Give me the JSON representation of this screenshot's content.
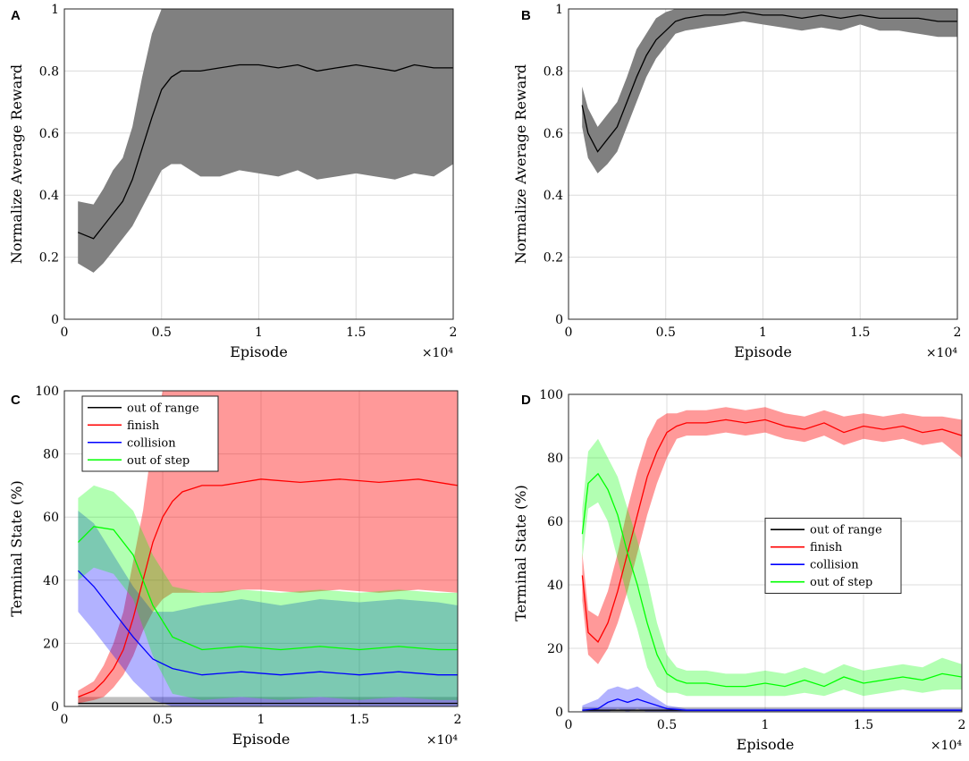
{
  "figure": {
    "exponent_label": "×10⁴"
  },
  "chart_data": [
    {
      "panel": "A",
      "type": "line",
      "title": "",
      "xlabel": "Episode",
      "ylabel": "Normalize Average Reward",
      "xlim": [
        0,
        2
      ],
      "ylim": [
        0,
        1
      ],
      "xticks": [
        "0",
        "0.5",
        "1",
        "1.5",
        "2"
      ],
      "yticks": [
        "0",
        "0.2",
        "0.4",
        "0.6",
        "0.8",
        "1"
      ],
      "x_multiplier": "×10⁴",
      "legend": null,
      "series": [
        {
          "name": "mean",
          "color": "#000000",
          "band_color": "#808080",
          "band_opacity": 1.0,
          "x": [
            0.07,
            0.15,
            0.2,
            0.25,
            0.3,
            0.35,
            0.4,
            0.45,
            0.5,
            0.55,
            0.6,
            0.7,
            0.8,
            0.9,
            1.0,
            1.1,
            1.2,
            1.3,
            1.4,
            1.5,
            1.6,
            1.7,
            1.8,
            1.9,
            2.0
          ],
          "values": [
            0.28,
            0.26,
            0.3,
            0.34,
            0.38,
            0.45,
            0.55,
            0.65,
            0.74,
            0.78,
            0.8,
            0.8,
            0.81,
            0.82,
            0.82,
            0.81,
            0.82,
            0.8,
            0.81,
            0.82,
            0.81,
            0.8,
            0.82,
            0.81,
            0.81
          ],
          "lower": [
            0.18,
            0.15,
            0.18,
            0.22,
            0.26,
            0.3,
            0.36,
            0.42,
            0.48,
            0.5,
            0.5,
            0.46,
            0.46,
            0.48,
            0.47,
            0.46,
            0.48,
            0.45,
            0.46,
            0.47,
            0.46,
            0.45,
            0.47,
            0.46,
            0.5
          ],
          "upper": [
            0.38,
            0.37,
            0.42,
            0.48,
            0.52,
            0.62,
            0.78,
            0.92,
            1.0,
            1.0,
            1.0,
            1.0,
            1.0,
            1.0,
            1.0,
            1.0,
            1.0,
            1.0,
            1.0,
            1.0,
            1.0,
            1.0,
            1.0,
            1.0,
            1.0
          ]
        }
      ]
    },
    {
      "panel": "B",
      "type": "line",
      "title": "",
      "xlabel": "Episode",
      "ylabel": "Normalize Average Reward",
      "xlim": [
        0,
        2
      ],
      "ylim": [
        0,
        1
      ],
      "xticks": [
        "0",
        "0.5",
        "1",
        "1.5",
        "2"
      ],
      "yticks": [
        "0",
        "0.2",
        "0.4",
        "0.6",
        "0.8",
        "1"
      ],
      "x_multiplier": "×10⁴",
      "legend": null,
      "series": [
        {
          "name": "mean",
          "color": "#000000",
          "band_color": "#808080",
          "band_opacity": 1.0,
          "x": [
            0.07,
            0.1,
            0.15,
            0.2,
            0.25,
            0.3,
            0.35,
            0.4,
            0.45,
            0.5,
            0.55,
            0.6,
            0.7,
            0.8,
            0.9,
            1.0,
            1.1,
            1.2,
            1.3,
            1.4,
            1.5,
            1.6,
            1.7,
            1.8,
            1.9,
            2.0
          ],
          "values": [
            0.69,
            0.6,
            0.54,
            0.58,
            0.62,
            0.7,
            0.78,
            0.85,
            0.9,
            0.93,
            0.96,
            0.97,
            0.98,
            0.98,
            0.99,
            0.98,
            0.98,
            0.97,
            0.98,
            0.97,
            0.98,
            0.97,
            0.97,
            0.97,
            0.96,
            0.96
          ],
          "lower": [
            0.62,
            0.52,
            0.47,
            0.5,
            0.54,
            0.62,
            0.7,
            0.78,
            0.84,
            0.88,
            0.92,
            0.93,
            0.94,
            0.95,
            0.96,
            0.95,
            0.94,
            0.93,
            0.94,
            0.93,
            0.95,
            0.93,
            0.93,
            0.92,
            0.91,
            0.91
          ],
          "upper": [
            0.75,
            0.68,
            0.62,
            0.66,
            0.7,
            0.78,
            0.87,
            0.92,
            0.97,
            0.99,
            1.0,
            1.0,
            1.0,
            1.0,
            1.0,
            1.0,
            1.0,
            1.0,
            1.0,
            1.0,
            1.0,
            1.0,
            1.0,
            1.0,
            1.0,
            1.0
          ]
        }
      ]
    },
    {
      "panel": "C",
      "type": "line",
      "title": "",
      "xlabel": "Episode",
      "ylabel": "Terminal State (%)",
      "xlim": [
        0,
        2
      ],
      "ylim": [
        0,
        100
      ],
      "xticks": [
        "0",
        "0.5",
        "1",
        "1.5",
        "2"
      ],
      "yticks": [
        "0",
        "20",
        "40",
        "60",
        "80",
        "100"
      ],
      "x_multiplier": "×10⁴",
      "legend": "top-left",
      "series": [
        {
          "name": "out of range",
          "color": "#000000",
          "band_color": "#000000",
          "band_opacity": 0.25,
          "x": [
            0.07,
            0.5,
            1.0,
            1.5,
            2.0
          ],
          "values": [
            1,
            1,
            1,
            1,
            1
          ],
          "lower": [
            0,
            0,
            0,
            0,
            0
          ],
          "upper": [
            3,
            3,
            3,
            3,
            3
          ]
        },
        {
          "name": "finish",
          "color": "#ff0000",
          "band_color": "#ff0000",
          "band_opacity": 0.4,
          "x": [
            0.07,
            0.15,
            0.2,
            0.25,
            0.3,
            0.35,
            0.4,
            0.45,
            0.5,
            0.55,
            0.6,
            0.7,
            0.8,
            0.9,
            1.0,
            1.2,
            1.4,
            1.6,
            1.8,
            2.0
          ],
          "values": [
            3,
            5,
            8,
            12,
            18,
            28,
            40,
            52,
            60,
            65,
            68,
            70,
            70,
            71,
            72,
            71,
            72,
            71,
            72,
            70
          ],
          "lower": [
            1,
            2,
            3,
            6,
            10,
            16,
            24,
            30,
            34,
            36,
            36,
            36,
            36,
            37,
            37,
            36,
            37,
            36,
            37,
            36
          ],
          "upper": [
            5,
            8,
            13,
            20,
            30,
            46,
            62,
            85,
            100,
            100,
            100,
            100,
            100,
            100,
            100,
            100,
            100,
            100,
            100,
            100
          ]
        },
        {
          "name": "collision",
          "color": "#0000ff",
          "band_color": "#0000ff",
          "band_opacity": 0.3,
          "x": [
            0.07,
            0.15,
            0.25,
            0.35,
            0.45,
            0.55,
            0.7,
            0.9,
            1.1,
            1.3,
            1.5,
            1.7,
            1.9,
            2.0
          ],
          "values": [
            43,
            38,
            30,
            22,
            15,
            12,
            10,
            11,
            10,
            11,
            10,
            11,
            10,
            10
          ],
          "lower": [
            30,
            24,
            16,
            8,
            2,
            0,
            0,
            0,
            0,
            0,
            0,
            0,
            0,
            0
          ],
          "upper": [
            62,
            58,
            48,
            38,
            30,
            30,
            32,
            34,
            32,
            34,
            33,
            34,
            33,
            32
          ]
        },
        {
          "name": "out of step",
          "color": "#00ff00",
          "band_color": "#00ff00",
          "band_opacity": 0.3,
          "x": [
            0.07,
            0.15,
            0.25,
            0.35,
            0.45,
            0.55,
            0.7,
            0.9,
            1.1,
            1.3,
            1.5,
            1.7,
            1.9,
            2.0
          ],
          "values": [
            52,
            57,
            56,
            48,
            32,
            22,
            18,
            19,
            18,
            19,
            18,
            19,
            18,
            18
          ],
          "lower": [
            40,
            44,
            42,
            34,
            16,
            4,
            2,
            3,
            2,
            3,
            2,
            3,
            2,
            2
          ],
          "upper": [
            66,
            70,
            68,
            62,
            48,
            38,
            36,
            37,
            36,
            37,
            36,
            37,
            36,
            36
          ]
        }
      ]
    },
    {
      "panel": "D",
      "type": "line",
      "title": "",
      "xlabel": "Episode",
      "ylabel": "Terminal State (%)",
      "xlim": [
        0,
        2
      ],
      "ylim": [
        0,
        100
      ],
      "xticks": [
        "0",
        "0.5",
        "1",
        "1.5",
        "2"
      ],
      "yticks": [
        "0",
        "20",
        "40",
        "60",
        "80",
        "100"
      ],
      "x_multiplier": "×10⁴",
      "legend": "center-right",
      "series": [
        {
          "name": "out of range",
          "color": "#000000",
          "band_color": "#000000",
          "band_opacity": 0.25,
          "x": [
            0.07,
            0.5,
            1.0,
            1.5,
            2.0
          ],
          "values": [
            0.5,
            0.5,
            0.5,
            0.5,
            0.5
          ],
          "lower": [
            0,
            0,
            0,
            0,
            0
          ],
          "upper": [
            1.5,
            1.5,
            1.5,
            1.5,
            1.5
          ]
        },
        {
          "name": "finish",
          "color": "#ff0000",
          "band_color": "#ff0000",
          "band_opacity": 0.4,
          "x": [
            0.07,
            0.1,
            0.15,
            0.2,
            0.25,
            0.3,
            0.35,
            0.4,
            0.45,
            0.5,
            0.55,
            0.6,
            0.7,
            0.8,
            0.9,
            1.0,
            1.1,
            1.2,
            1.3,
            1.4,
            1.5,
            1.6,
            1.7,
            1.8,
            1.9,
            2.0
          ],
          "values": [
            43,
            25,
            22,
            28,
            38,
            50,
            62,
            74,
            82,
            88,
            90,
            91,
            91,
            92,
            91,
            92,
            90,
            89,
            91,
            88,
            90,
            89,
            90,
            88,
            89,
            87
          ],
          "lower": [
            35,
            18,
            15,
            20,
            28,
            38,
            50,
            62,
            72,
            80,
            86,
            87,
            87,
            88,
            87,
            88,
            86,
            85,
            87,
            84,
            86,
            85,
            86,
            84,
            85,
            80
          ],
          "upper": [
            50,
            32,
            30,
            38,
            50,
            64,
            76,
            86,
            92,
            94,
            94,
            95,
            95,
            96,
            95,
            96,
            94,
            93,
            95,
            93,
            94,
            93,
            94,
            93,
            93,
            92
          ]
        },
        {
          "name": "collision",
          "color": "#0000ff",
          "band_color": "#0000ff",
          "band_opacity": 0.3,
          "x": [
            0.07,
            0.15,
            0.2,
            0.25,
            0.3,
            0.35,
            0.4,
            0.45,
            0.5,
            0.6,
            0.8,
            1.0,
            1.5,
            2.0
          ],
          "values": [
            0.5,
            1,
            3,
            4,
            3,
            4,
            3,
            2,
            1,
            0.5,
            0.5,
            0.5,
            0.5,
            0.5
          ],
          "lower": [
            0,
            0,
            0,
            1,
            0,
            1,
            0,
            0,
            0,
            0,
            0,
            0,
            0,
            0
          ],
          "upper": [
            2,
            4,
            7,
            8,
            7,
            8,
            6,
            4,
            2,
            1,
            1,
            1,
            1,
            1
          ]
        },
        {
          "name": "out of step",
          "color": "#00ff00",
          "band_color": "#00ff00",
          "band_opacity": 0.3,
          "x": [
            0.07,
            0.1,
            0.15,
            0.2,
            0.25,
            0.3,
            0.35,
            0.4,
            0.45,
            0.5,
            0.55,
            0.6,
            0.7,
            0.8,
            0.9,
            1.0,
            1.1,
            1.2,
            1.3,
            1.4,
            1.5,
            1.6,
            1.7,
            1.8,
            1.9,
            2.0
          ],
          "values": [
            56,
            72,
            75,
            70,
            62,
            50,
            40,
            28,
            18,
            12,
            10,
            9,
            9,
            8,
            8,
            9,
            8,
            10,
            8,
            11,
            9,
            10,
            11,
            10,
            12,
            11
          ],
          "lower": [
            48,
            64,
            66,
            60,
            48,
            36,
            26,
            14,
            8,
            6,
            6,
            5,
            5,
            5,
            5,
            5,
            5,
            6,
            5,
            7,
            5,
            6,
            7,
            6,
            7,
            7
          ],
          "upper": [
            64,
            82,
            86,
            80,
            74,
            64,
            54,
            42,
            28,
            18,
            14,
            13,
            13,
            12,
            12,
            13,
            12,
            14,
            12,
            15,
            13,
            14,
            15,
            14,
            17,
            15
          ]
        }
      ]
    }
  ]
}
